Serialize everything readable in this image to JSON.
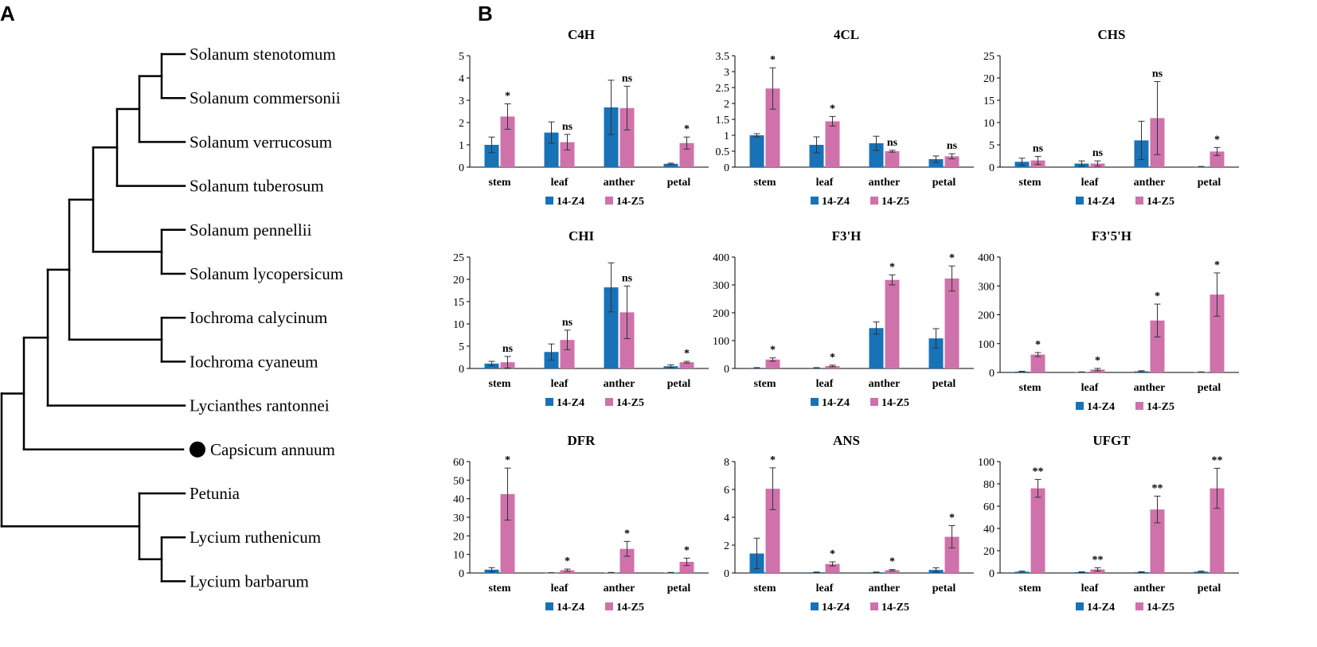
{
  "panels": {
    "a": "A",
    "b": "B"
  },
  "colors": {
    "z4": "#1872B7",
    "z5": "#CF72AB",
    "tree": "#000000",
    "marker": "#000000"
  },
  "tree": {
    "species": [
      "Solanum stenotomum",
      "Solanum commersonii",
      "Solanum verrucosum",
      "Solanum tuberosum",
      "Solanum pennellii",
      "Solanum lycopersicum",
      "Iochroma calycinum",
      "Iochroma cyaneum",
      "Lycianthes rantonnei",
      "Capsicum annuum",
      "Petunia",
      "Lycium ruthenicum",
      "Lycium barbarum"
    ],
    "highlighted": "Capsicum annuum",
    "highlight_marker": "filled-circle"
  },
  "chart_data": [
    {
      "type": "bar",
      "title": "C4H",
      "categories": [
        "stem",
        "leaf",
        "anther",
        "petal"
      ],
      "ylim": [
        0,
        5
      ],
      "yticks": [
        0,
        1,
        2,
        3,
        4,
        5
      ],
      "series": [
        {
          "name": "14-Z4",
          "values": [
            1.0,
            1.55,
            2.68,
            0.15
          ],
          "errors": [
            0.35,
            0.48,
            1.22,
            0.03
          ]
        },
        {
          "name": "14-Z5",
          "values": [
            2.27,
            1.12,
            2.65,
            1.08
          ],
          "errors": [
            0.57,
            0.35,
            0.98,
            0.27
          ]
        }
      ],
      "significance": [
        "*",
        "ns",
        "ns",
        "*"
      ],
      "legend_position": "bottom"
    },
    {
      "type": "bar",
      "title": "4CL",
      "categories": [
        "stem",
        "leaf",
        "anther",
        "petal"
      ],
      "ylim": [
        0,
        3.5
      ],
      "yticks": [
        0,
        0.5,
        1,
        1.5,
        2,
        2.5,
        3,
        3.5
      ],
      "series": [
        {
          "name": "14-Z4",
          "values": [
            1.0,
            0.7,
            0.75,
            0.25
          ],
          "errors": [
            0.05,
            0.25,
            0.22,
            0.1
          ]
        },
        {
          "name": "14-Z5",
          "values": [
            2.47,
            1.44,
            0.5,
            0.34
          ],
          "errors": [
            0.65,
            0.15,
            0.03,
            0.08
          ]
        }
      ],
      "significance": [
        "*",
        "*",
        "ns",
        "ns"
      ],
      "legend_position": "bottom"
    },
    {
      "type": "bar",
      "title": "CHS",
      "categories": [
        "stem",
        "leaf",
        "anther",
        "petal"
      ],
      "ylim": [
        0,
        25
      ],
      "yticks": [
        0,
        5,
        10,
        15,
        20,
        25
      ],
      "series": [
        {
          "name": "14-Z4",
          "values": [
            1.2,
            0.8,
            6.0,
            0.1
          ],
          "errors": [
            0.8,
            0.6,
            4.3,
            0.05
          ]
        },
        {
          "name": "14-Z5",
          "values": [
            1.5,
            0.8,
            11.0,
            3.5
          ],
          "errors": [
            0.9,
            0.6,
            8.2,
            0.9
          ]
        }
      ],
      "significance": [
        "ns",
        "ns",
        "ns",
        "*"
      ],
      "legend_position": "bottom"
    },
    {
      "type": "bar",
      "title": "CHI",
      "categories": [
        "stem",
        "leaf",
        "anther",
        "petal"
      ],
      "ylim": [
        0,
        25
      ],
      "yticks": [
        0,
        5,
        10,
        15,
        20,
        25
      ],
      "series": [
        {
          "name": "14-Z4",
          "values": [
            1.1,
            3.7,
            18.2,
            0.5
          ],
          "errors": [
            0.5,
            1.8,
            5.5,
            0.3
          ]
        },
        {
          "name": "14-Z5",
          "values": [
            1.4,
            6.4,
            12.6,
            1.4
          ],
          "errors": [
            1.3,
            2.2,
            5.9,
            0.2
          ]
        }
      ],
      "significance": [
        "ns",
        "ns",
        "ns",
        "*"
      ],
      "legend_position": "bottom"
    },
    {
      "type": "bar",
      "title": "F3'H",
      "categories": [
        "stem",
        "leaf",
        "anther",
        "petal"
      ],
      "ylim": [
        0,
        400
      ],
      "yticks": [
        0,
        100,
        200,
        300,
        400
      ],
      "series": [
        {
          "name": "14-Z4",
          "values": [
            2,
            2,
            145,
            108
          ],
          "errors": [
            1,
            1,
            22,
            35
          ]
        },
        {
          "name": "14-Z5",
          "values": [
            32,
            9,
            318,
            323
          ],
          "errors": [
            6,
            3,
            18,
            45
          ]
        }
      ],
      "significance": [
        "*",
        "*",
        "*",
        "*"
      ],
      "legend_position": "bottom"
    },
    {
      "type": "bar",
      "title": "F3'5'H",
      "categories": [
        "stem",
        "leaf",
        "anther",
        "petal"
      ],
      "ylim": [
        0,
        400
      ],
      "yticks": [
        0,
        100,
        200,
        300,
        400
      ],
      "series": [
        {
          "name": "14-Z4",
          "values": [
            3,
            1,
            4,
            1
          ],
          "errors": [
            1,
            1,
            2,
            1
          ]
        },
        {
          "name": "14-Z5",
          "values": [
            62,
            10,
            180,
            270
          ],
          "errors": [
            7,
            4,
            57,
            75
          ]
        }
      ],
      "significance": [
        "*",
        "*",
        "*",
        "*"
      ],
      "legend_position": "bottom"
    },
    {
      "type": "bar",
      "title": "DFR",
      "categories": [
        "stem",
        "leaf",
        "anther",
        "petal"
      ],
      "ylim": [
        0,
        60
      ],
      "yticks": [
        0,
        10,
        20,
        30,
        40,
        50,
        60
      ],
      "series": [
        {
          "name": "14-Z4",
          "values": [
            1.8,
            0.1,
            0.2,
            0.2
          ],
          "errors": [
            1.1,
            0.1,
            0.1,
            0.1
          ]
        },
        {
          "name": "14-Z5",
          "values": [
            42.5,
            1.5,
            13.0,
            6.0
          ],
          "errors": [
            14,
            0.6,
            4.0,
            2.0
          ]
        }
      ],
      "significance": [
        "*",
        "*",
        "*",
        "*"
      ],
      "legend_position": "bottom"
    },
    {
      "type": "bar",
      "title": "ANS",
      "categories": [
        "stem",
        "leaf",
        "anther",
        "petal"
      ],
      "ylim": [
        0,
        8
      ],
      "yticks": [
        0,
        2,
        4,
        6,
        8
      ],
      "series": [
        {
          "name": "14-Z4",
          "values": [
            1.4,
            0.05,
            0.05,
            0.22
          ],
          "errors": [
            1.1,
            0.02,
            0.02,
            0.15
          ]
        },
        {
          "name": "14-Z5",
          "values": [
            6.05,
            0.65,
            0.2,
            2.6
          ],
          "errors": [
            1.5,
            0.15,
            0.05,
            0.8
          ]
        }
      ],
      "significance": [
        "*",
        "*",
        "*",
        "*"
      ],
      "legend_position": "bottom"
    },
    {
      "type": "bar",
      "title": "UFGT",
      "categories": [
        "stem",
        "leaf",
        "anther",
        "petal"
      ],
      "ylim": [
        0,
        100
      ],
      "yticks": [
        0,
        20,
        40,
        60,
        80,
        100
      ],
      "series": [
        {
          "name": "14-Z4",
          "values": [
            1.2,
            0.8,
            0.8,
            1.2
          ],
          "errors": [
            0.5,
            0.3,
            0.3,
            0.5
          ]
        },
        {
          "name": "14-Z5",
          "values": [
            76,
            3.2,
            57,
            76
          ],
          "errors": [
            8,
            1.5,
            12,
            18
          ]
        }
      ],
      "significance": [
        "**",
        "**",
        "**",
        "**"
      ],
      "legend_position": "bottom"
    }
  ]
}
